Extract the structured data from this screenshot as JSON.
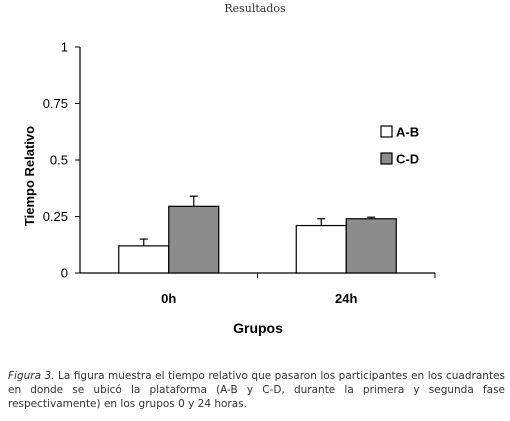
{
  "header": {
    "section": "Resultados"
  },
  "chart_data": {
    "type": "bar",
    "categories": [
      "0h",
      "24h"
    ],
    "series": [
      {
        "name": "A-B",
        "color": "#ffffff",
        "values": [
          0.12,
          0.21
        ],
        "errors": [
          0.03,
          0.03
        ]
      },
      {
        "name": "C-D",
        "color": "#8c8c8c",
        "values": [
          0.295,
          0.24
        ],
        "errors": [
          0.045,
          0.007
        ]
      }
    ],
    "title": "",
    "xlabel": "Grupos",
    "ylabel": "Tiempo Relativo",
    "ylim": [
      0,
      1
    ],
    "yticks": [
      {
        "value": 0,
        "label": "0"
      },
      {
        "value": 0.25,
        "label": "0.25"
      },
      {
        "value": 0.5,
        "label": "0.5"
      },
      {
        "value": 0.75,
        "label": "0.75"
      },
      {
        "value": 1,
        "label": "1"
      }
    ],
    "grid": false,
    "legend_position": "top-right"
  },
  "caption": {
    "label": "Figura 3.",
    "text": " La figura muestra el tiempo relativo que pasaron los participantes en los cuadrantes en donde se ubicó la plataforma (A-B y C-D, durante la primera y segunda fase respectivamente) en los grupos 0 y 24 horas."
  }
}
